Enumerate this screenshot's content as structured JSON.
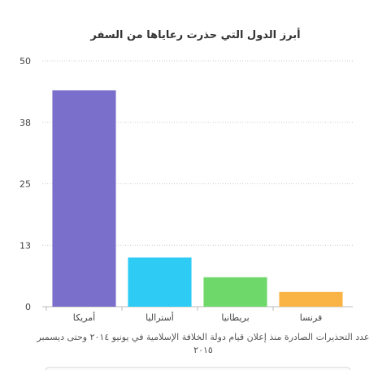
{
  "chart_data": {
    "type": "bar",
    "title": "أبرز الدول التي حذرت رعاياها من السفر",
    "categories": [
      "أمريكا",
      "أستراليا",
      "بريطانيا",
      "فرنسا"
    ],
    "values": [
      44,
      10,
      6,
      3
    ],
    "colors": [
      "#7b6fcc",
      "#2ecbf5",
      "#6fd86a",
      "#f9b445"
    ],
    "yticks": [
      "50",
      "38",
      "25",
      "13",
      "0"
    ],
    "ytick_values": [
      50,
      37.5,
      25,
      12.5,
      0
    ],
    "ylim": [
      0,
      50
    ],
    "grid": true,
    "xlabel": "عدد التحذيرات الصادرة منذ إعلان قيام دولة الخلافة الإسلامية في يونيو ٢٠١٤ وحتى ديسمبر ٢٠١٥",
    "ylabel": ""
  }
}
